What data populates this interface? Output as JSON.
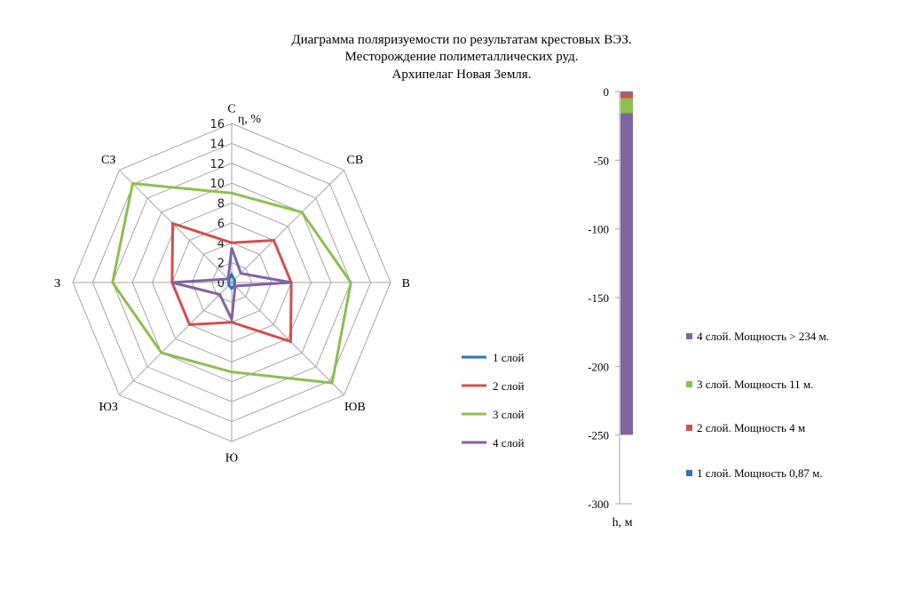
{
  "title_lines": [
    "Диаграмма поляризуемости по результатам крестовых ВЭЗ.",
    "Месторождение полиметаллических руд.",
    "Архипелаг Новая Земля."
  ],
  "chart_data": [
    {
      "type": "radar",
      "categories": [
        "С",
        "СВ",
        "В",
        "ЮВ",
        "Ю",
        "ЮЗ",
        "З",
        "СЗ"
      ],
      "axis_label": "η, %",
      "rlim": [
        0,
        16
      ],
      "ticks": [
        "0",
        "2",
        "4",
        "6",
        "8",
        "10",
        "12",
        "14",
        "16"
      ],
      "grid": true,
      "legend_position": "right",
      "series": [
        {
          "name": "1 слой",
          "color": "#2e75b6",
          "values": [
            0.8,
            0.4,
            0.3,
            0.4,
            0.6,
            0.4,
            0.3,
            0.4
          ]
        },
        {
          "name": "2 слой",
          "color": "#d0504d",
          "values": [
            4,
            6,
            6,
            8.4,
            4,
            6,
            6,
            8.4
          ]
        },
        {
          "name": "3 слой",
          "color": "#8cbf4f",
          "values": [
            9,
            10,
            12,
            14.3,
            9,
            10,
            12,
            14.1
          ]
        },
        {
          "name": "4 слой",
          "color": "#8064a2",
          "values": [
            3.5,
            1.3,
            6,
            0.5,
            3.7,
            1.7,
            6,
            0.5
          ]
        }
      ]
    },
    {
      "type": "bar",
      "stacked": true,
      "ylabel": "h, м",
      "ylim": [
        -300,
        0
      ],
      "ticks": [
        "0",
        "-50",
        "-100",
        "-150",
        "-200",
        "-250",
        "-300"
      ],
      "legend_position": "right",
      "series": [
        {
          "name": "1 слой. Мощность 0,87 м.",
          "color": "#2e75b6",
          "value": 0.87
        },
        {
          "name": "2 слой. Мощность 4 м",
          "color": "#d0504d",
          "value": 4
        },
        {
          "name": "3 слой. Мощность 11 м.",
          "color": "#8cbf4f",
          "value": 11
        },
        {
          "name": "4 слой. Мощность > 234 м.",
          "color": "#8064a2",
          "value": 234
        }
      ]
    }
  ]
}
